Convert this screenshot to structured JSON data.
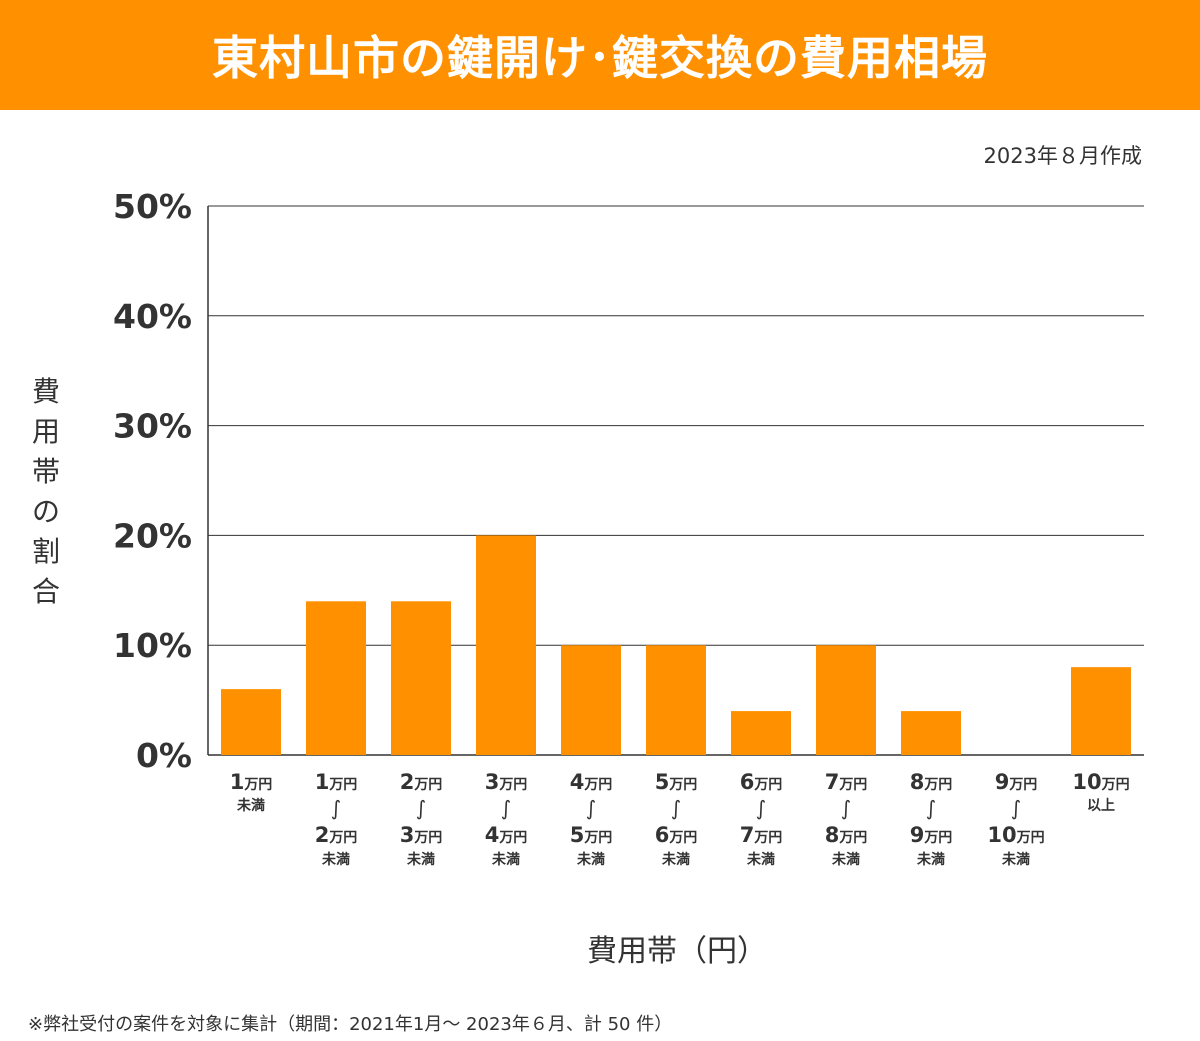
{
  "header": {
    "title": "東村山市の鍵開け･鍵交換の費用相場"
  },
  "created_note": "2023年８月作成",
  "footnote": "※弊社受付の案件を対象に集計（期間：2021年1月～ 2023年６月、計 50 件）",
  "colors": {
    "banner": "#ff9100",
    "bar": "#ff9100",
    "grid": "#333333",
    "text": "#333333"
  },
  "chart_data": {
    "type": "bar",
    "title": "東村山市の鍵開け･鍵交換の費用相場",
    "xlabel": "費用帯（円）",
    "ylabel": "費用帯の割合",
    "ylim": [
      0,
      50
    ],
    "yticks": [
      "0%",
      "10%",
      "20%",
      "30%",
      "40%",
      "50%"
    ],
    "grid": true,
    "unit": "%",
    "categories": [
      "1万円未満",
      "1万円～2万円未満",
      "2万円～3万円未満",
      "3万円～4万円未満",
      "4万円～5万円未満",
      "5万円～6万円未満",
      "6万円～7万円未満",
      "7万円～8万円未満",
      "8万円～9万円未満",
      "9万円～10万円未満",
      "10万円以上"
    ],
    "category_labels": [
      {
        "top": [
          [
            "1",
            "万円"
          ]
        ],
        "tilde": false,
        "bottom": "未満"
      },
      {
        "top": [
          [
            "1",
            "万円"
          ]
        ],
        "tilde": true,
        "mid": [
          [
            "2",
            "万円"
          ]
        ],
        "bottom": "未満"
      },
      {
        "top": [
          [
            "2",
            "万円"
          ]
        ],
        "tilde": true,
        "mid": [
          [
            "3",
            "万円"
          ]
        ],
        "bottom": "未満"
      },
      {
        "top": [
          [
            "3",
            "万円"
          ]
        ],
        "tilde": true,
        "mid": [
          [
            "4",
            "万円"
          ]
        ],
        "bottom": "未満"
      },
      {
        "top": [
          [
            "4",
            "万円"
          ]
        ],
        "tilde": true,
        "mid": [
          [
            "5",
            "万円"
          ]
        ],
        "bottom": "未満"
      },
      {
        "top": [
          [
            "5",
            "万円"
          ]
        ],
        "tilde": true,
        "mid": [
          [
            "6",
            "万円"
          ]
        ],
        "bottom": "未満"
      },
      {
        "top": [
          [
            "6",
            "万円"
          ]
        ],
        "tilde": true,
        "mid": [
          [
            "7",
            "万円"
          ]
        ],
        "bottom": "未満"
      },
      {
        "top": [
          [
            "7",
            "万円"
          ]
        ],
        "tilde": true,
        "mid": [
          [
            "8",
            "万円"
          ]
        ],
        "bottom": "未満"
      },
      {
        "top": [
          [
            "8",
            "万円"
          ]
        ],
        "tilde": true,
        "mid": [
          [
            "9",
            "万円"
          ]
        ],
        "bottom": "未満"
      },
      {
        "top": [
          [
            "9",
            "万円"
          ]
        ],
        "tilde": true,
        "mid": [
          [
            "10",
            "万円"
          ]
        ],
        "bottom": "未満"
      },
      {
        "top": [
          [
            "10",
            "万円"
          ]
        ],
        "tilde": false,
        "bottom": "以上"
      }
    ],
    "values": [
      6,
      14,
      14,
      20,
      10,
      10,
      4,
      10,
      4,
      0,
      8
    ]
  }
}
